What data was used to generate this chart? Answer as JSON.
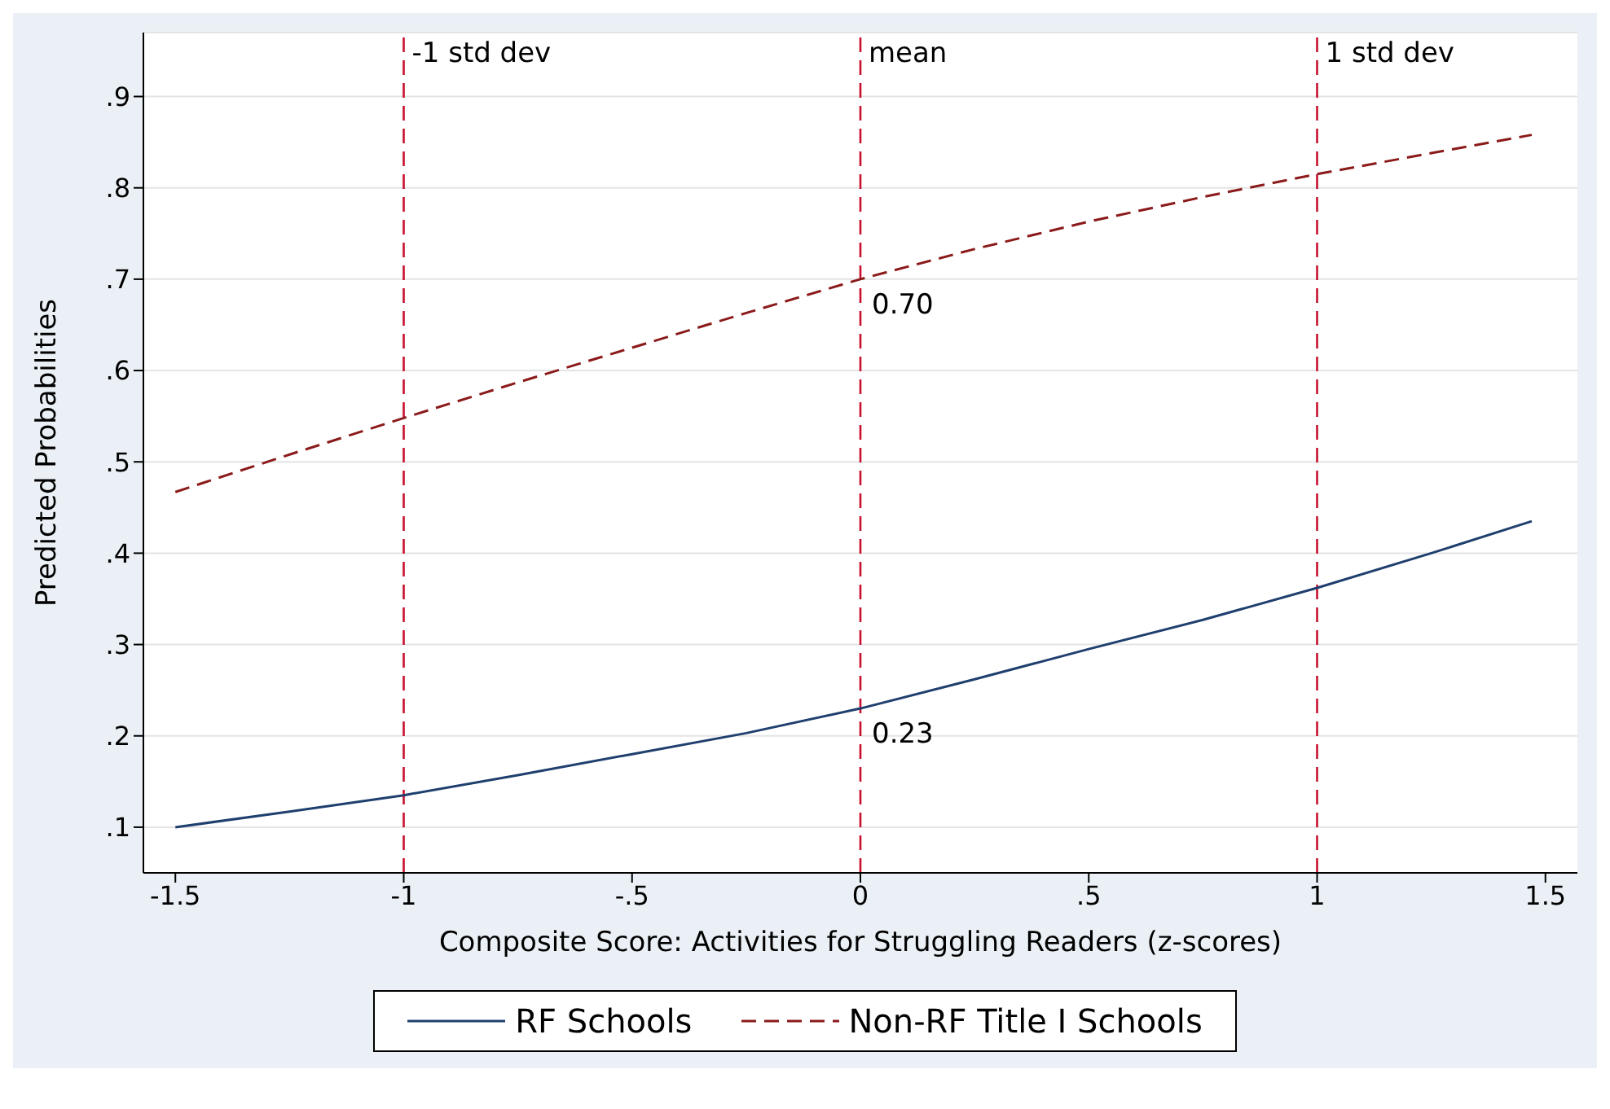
{
  "chart_data": {
    "type": "line",
    "xlabel": "Composite Score: Activities for Struggling Readers (z-scores)",
    "ylabel": "Predicted Probabilities",
    "x": [
      -1.5,
      -1.25,
      -1,
      -0.75,
      -0.5,
      -0.25,
      0,
      0.25,
      0.5,
      0.75,
      1,
      1.25,
      1.47
    ],
    "series": [
      {
        "name": "RF Schools",
        "color": "#1f3f6e",
        "line_style": "solid",
        "values": [
          0.1,
          0.117,
          0.135,
          0.157,
          0.18,
          0.203,
          0.23,
          0.262,
          0.295,
          0.327,
          0.362,
          0.4,
          0.435
        ]
      },
      {
        "name": "Non-RF Title I Schools",
        "color": "#8b1a1a",
        "line_style": "dashed",
        "values": [
          0.467,
          0.508,
          0.548,
          0.587,
          0.625,
          0.663,
          0.7,
          0.733,
          0.763,
          0.79,
          0.815,
          0.838,
          0.858
        ]
      }
    ],
    "xlim": [
      -1.57,
      1.57
    ],
    "xticks": [
      {
        "value": -1.5,
        "label": "-1.5"
      },
      {
        "value": -1,
        "label": "-1"
      },
      {
        "value": -0.5,
        "label": "-.5"
      },
      0,
      {
        "value": 0.5,
        "label": ".5"
      },
      1,
      {
        "value": 1.5,
        "label": "1.5"
      }
    ],
    "ylim": [
      0.05,
      0.97
    ],
    "yticks": [
      {
        "value": 0.1,
        "label": ".1"
      },
      {
        "value": 0.2,
        "label": ".2"
      },
      {
        "value": 0.3,
        "label": ".3"
      },
      {
        "value": 0.4,
        "label": ".4"
      },
      {
        "value": 0.5,
        "label": ".5"
      },
      {
        "value": 0.6,
        "label": ".6"
      },
      {
        "value": 0.7,
        "label": ".7"
      },
      {
        "value": 0.8,
        "label": ".8"
      },
      {
        "value": 0.9,
        "label": ".9"
      }
    ],
    "ref_lines": [
      {
        "axis": "x",
        "value": -1,
        "label": "-1 std dev",
        "color": "#c8102e",
        "line_style": "dashed"
      },
      {
        "axis": "x",
        "value": 0,
        "label": "mean",
        "color": "#c8102e",
        "line_style": "dashed"
      },
      {
        "axis": "x",
        "value": 1,
        "label": "1 std dev",
        "color": "#c8102e",
        "line_style": "dashed"
      }
    ],
    "annotations": [
      {
        "text": "0.70",
        "x": 0,
        "y": 0.7
      },
      {
        "text": "0.23",
        "x": 0,
        "y": 0.23
      }
    ],
    "grid": "y",
    "legend": "bottom",
    "marker": "none"
  }
}
